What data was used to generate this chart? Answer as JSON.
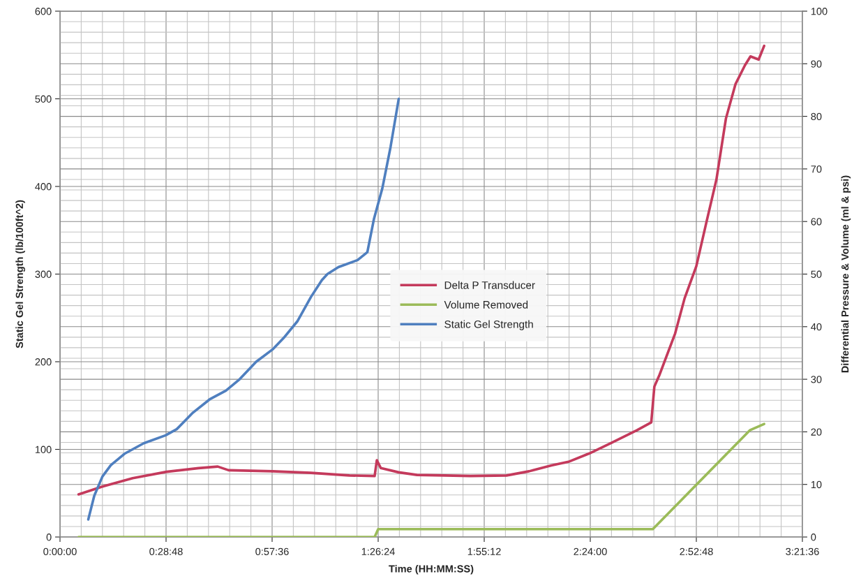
{
  "chart_data": {
    "type": "line",
    "xlabel": "Time (HH:MM:SS)",
    "ylabel": "Static Gel Strength (lb/100ft^2)",
    "y2label": "Differential Pressure & Volume (ml & psi)",
    "xlim": [
      0,
      3.36
    ],
    "xticks": [
      {
        "value": 0,
        "label": "0:00:00"
      },
      {
        "value": 0.48,
        "label": "0:28:48"
      },
      {
        "value": 0.96,
        "label": "0:57:36"
      },
      {
        "value": 1.44,
        "label": "1:26:24"
      },
      {
        "value": 1.92,
        "label": "1:55:12"
      },
      {
        "value": 2.4,
        "label": "2:24:00"
      },
      {
        "value": 2.88,
        "label": "2:52:48"
      },
      {
        "value": 3.36,
        "label": "3:21:36"
      }
    ],
    "ylim": [
      0,
      600
    ],
    "yticks": [
      0,
      100,
      200,
      300,
      400,
      500,
      600
    ],
    "y2lim": [
      0,
      100
    ],
    "y2ticks": [
      0,
      10,
      20,
      30,
      40,
      50,
      60,
      70,
      80,
      90,
      100
    ],
    "grid": true,
    "legend": "center",
    "series": [
      {
        "name": "Delta P Transducer",
        "color": "#c43a5c",
        "axis": "y2",
        "x": [
          0.084,
          0.192,
          0.329,
          0.482,
          0.627,
          0.714,
          0.763,
          0.962,
          1.136,
          1.31,
          1.424,
          1.434,
          1.452,
          1.533,
          1.616,
          1.742,
          1.857,
          2.021,
          2.123,
          2.224,
          2.301,
          2.396,
          2.496,
          2.611,
          2.676,
          2.69,
          2.712,
          2.784,
          2.827,
          2.88,
          2.927,
          2.971,
          3.014,
          3.057,
          3.1,
          3.125,
          3.162,
          3.187
        ],
        "values": [
          8.1,
          9.6,
          11.2,
          12.4,
          13.1,
          13.4,
          12.7,
          12.5,
          12.2,
          11.7,
          11.6,
          14.6,
          13.1,
          12.3,
          11.8,
          11.7,
          11.6,
          11.7,
          12.5,
          13.6,
          14.3,
          15.9,
          17.9,
          20.3,
          21.8,
          28.6,
          30.7,
          38.7,
          45.4,
          51.5,
          60.1,
          68.0,
          79.6,
          86.1,
          89.7,
          91.4,
          90.8,
          93.4
        ]
      },
      {
        "name": "Volume Removed",
        "color": "#9bbb59",
        "axis": "y2",
        "x": [
          0.084,
          1.424,
          1.44,
          2.683,
          3.122,
          3.187
        ],
        "values": [
          0,
          0,
          1.5,
          1.5,
          20.3,
          21.5
        ]
      },
      {
        "name": "Static Gel Strength",
        "color": "#4f7fbf",
        "axis": "y",
        "x": [
          0.128,
          0.155,
          0.192,
          0.23,
          0.292,
          0.379,
          0.478,
          0.528,
          0.602,
          0.677,
          0.751,
          0.813,
          0.888,
          0.962,
          1.012,
          1.074,
          1.136,
          1.185,
          1.21,
          1.26,
          1.347,
          1.391,
          1.421,
          1.459,
          1.496,
          1.533
        ],
        "values": [
          20,
          47,
          69,
          82,
          95,
          107,
          116,
          123,
          142,
          157,
          167,
          180,
          200,
          214,
          227,
          246,
          274,
          293,
          300,
          308,
          316,
          325,
          363,
          398,
          445,
          500
        ]
      }
    ]
  }
}
